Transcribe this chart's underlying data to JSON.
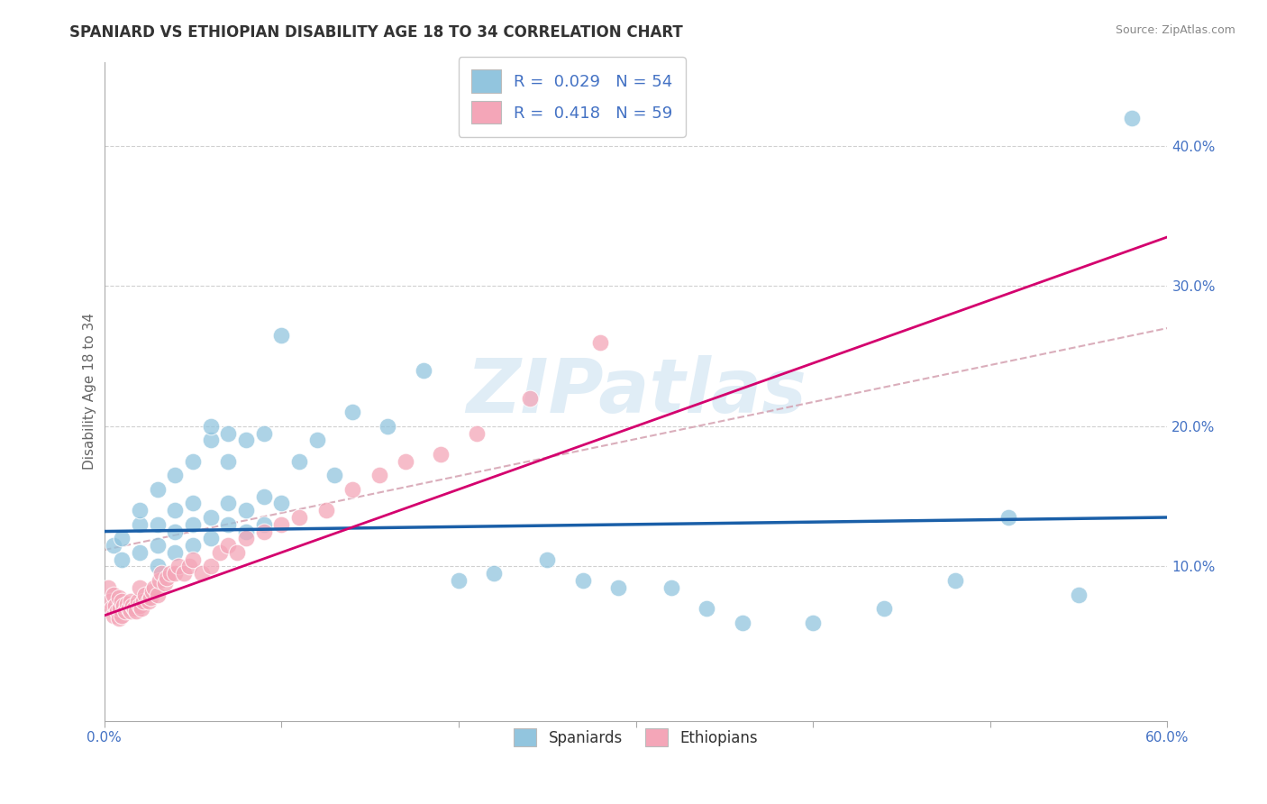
{
  "title": "SPANIARD VS ETHIOPIAN DISABILITY AGE 18 TO 34 CORRELATION CHART",
  "source": "Source: ZipAtlas.com",
  "ylabel": "Disability Age 18 to 34",
  "legend_blue_label": "Spaniards",
  "legend_pink_label": "Ethiopians",
  "R_blue": 0.029,
  "N_blue": 54,
  "R_pink": 0.418,
  "N_pink": 59,
  "blue_color": "#92c5de",
  "pink_color": "#f4a6b8",
  "blue_line_color": "#1a5fa8",
  "pink_line_color": "#d4006e",
  "dashed_line_color": "#d4a0b0",
  "watermark_text": "ZIPatlas",
  "xlim": [
    0.0,
    0.6
  ],
  "ylim": [
    -0.01,
    0.46
  ],
  "xticks": [
    0.0,
    0.1,
    0.2,
    0.3,
    0.4,
    0.5,
    0.6
  ],
  "yticks": [
    0.1,
    0.2,
    0.3,
    0.4
  ],
  "blue_scatter_x": [
    0.005,
    0.01,
    0.01,
    0.02,
    0.02,
    0.02,
    0.03,
    0.03,
    0.03,
    0.03,
    0.04,
    0.04,
    0.04,
    0.04,
    0.05,
    0.05,
    0.05,
    0.05,
    0.06,
    0.06,
    0.06,
    0.06,
    0.07,
    0.07,
    0.07,
    0.07,
    0.08,
    0.08,
    0.08,
    0.09,
    0.09,
    0.09,
    0.1,
    0.1,
    0.11,
    0.12,
    0.13,
    0.14,
    0.16,
    0.18,
    0.2,
    0.22,
    0.25,
    0.27,
    0.29,
    0.32,
    0.34,
    0.36,
    0.4,
    0.44,
    0.48,
    0.51,
    0.55,
    0.58
  ],
  "blue_scatter_y": [
    0.115,
    0.105,
    0.12,
    0.11,
    0.13,
    0.14,
    0.1,
    0.115,
    0.13,
    0.155,
    0.11,
    0.125,
    0.14,
    0.165,
    0.115,
    0.13,
    0.145,
    0.175,
    0.12,
    0.135,
    0.19,
    0.2,
    0.13,
    0.145,
    0.175,
    0.195,
    0.125,
    0.14,
    0.19,
    0.13,
    0.15,
    0.195,
    0.145,
    0.265,
    0.175,
    0.19,
    0.165,
    0.21,
    0.2,
    0.24,
    0.09,
    0.095,
    0.105,
    0.09,
    0.085,
    0.085,
    0.07,
    0.06,
    0.06,
    0.07,
    0.09,
    0.135,
    0.08,
    0.42
  ],
  "pink_scatter_x": [
    0.002,
    0.003,
    0.004,
    0.005,
    0.005,
    0.006,
    0.007,
    0.008,
    0.008,
    0.009,
    0.01,
    0.01,
    0.011,
    0.012,
    0.013,
    0.014,
    0.015,
    0.015,
    0.016,
    0.017,
    0.018,
    0.019,
    0.02,
    0.02,
    0.021,
    0.022,
    0.023,
    0.025,
    0.026,
    0.027,
    0.028,
    0.03,
    0.031,
    0.032,
    0.034,
    0.035,
    0.037,
    0.04,
    0.042,
    0.045,
    0.048,
    0.05,
    0.055,
    0.06,
    0.065,
    0.07,
    0.075,
    0.08,
    0.09,
    0.1,
    0.11,
    0.125,
    0.14,
    0.155,
    0.17,
    0.19,
    0.21,
    0.24,
    0.28
  ],
  "pink_scatter_y": [
    0.085,
    0.075,
    0.07,
    0.065,
    0.08,
    0.072,
    0.068,
    0.063,
    0.078,
    0.07,
    0.065,
    0.075,
    0.072,
    0.068,
    0.073,
    0.07,
    0.068,
    0.075,
    0.072,
    0.07,
    0.068,
    0.075,
    0.072,
    0.085,
    0.07,
    0.075,
    0.08,
    0.075,
    0.078,
    0.082,
    0.085,
    0.08,
    0.09,
    0.095,
    0.088,
    0.092,
    0.095,
    0.095,
    0.1,
    0.095,
    0.1,
    0.105,
    0.095,
    0.1,
    0.11,
    0.115,
    0.11,
    0.12,
    0.125,
    0.13,
    0.135,
    0.14,
    0.155,
    0.165,
    0.175,
    0.18,
    0.195,
    0.22,
    0.26
  ]
}
